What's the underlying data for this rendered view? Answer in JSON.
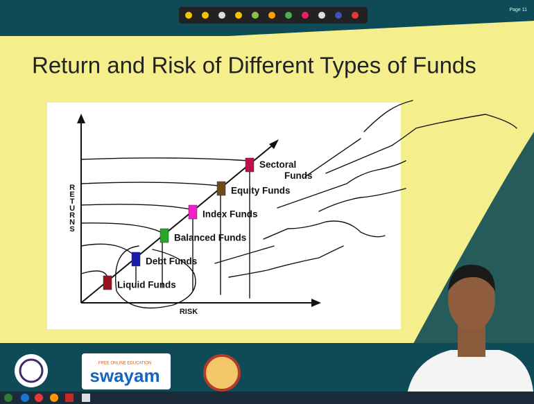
{
  "toolbar": {
    "page": "Page 11"
  },
  "slide": {
    "title": "Return and Risk of Different Types of Funds",
    "diagram": {
      "y_axis": "RETURNS",
      "x_axis": "RISK",
      "funds": [
        {
          "label": "Liquid Funds",
          "color": "#9b1020"
        },
        {
          "label": "Debt Funds",
          "color": "#1a1aa8"
        },
        {
          "label": "Balanced Funds",
          "color": "#2aa52a"
        },
        {
          "label": "Index Funds",
          "color": "#f020c8"
        },
        {
          "label": "Equity Funds",
          "color": "#6e4a1e"
        },
        {
          "label": "Sectoral Funds",
          "color": "#c0104a"
        }
      ]
    }
  },
  "footer": {
    "tagline": "FREE ONLINE EDUCATION",
    "logo": "swayam"
  }
}
